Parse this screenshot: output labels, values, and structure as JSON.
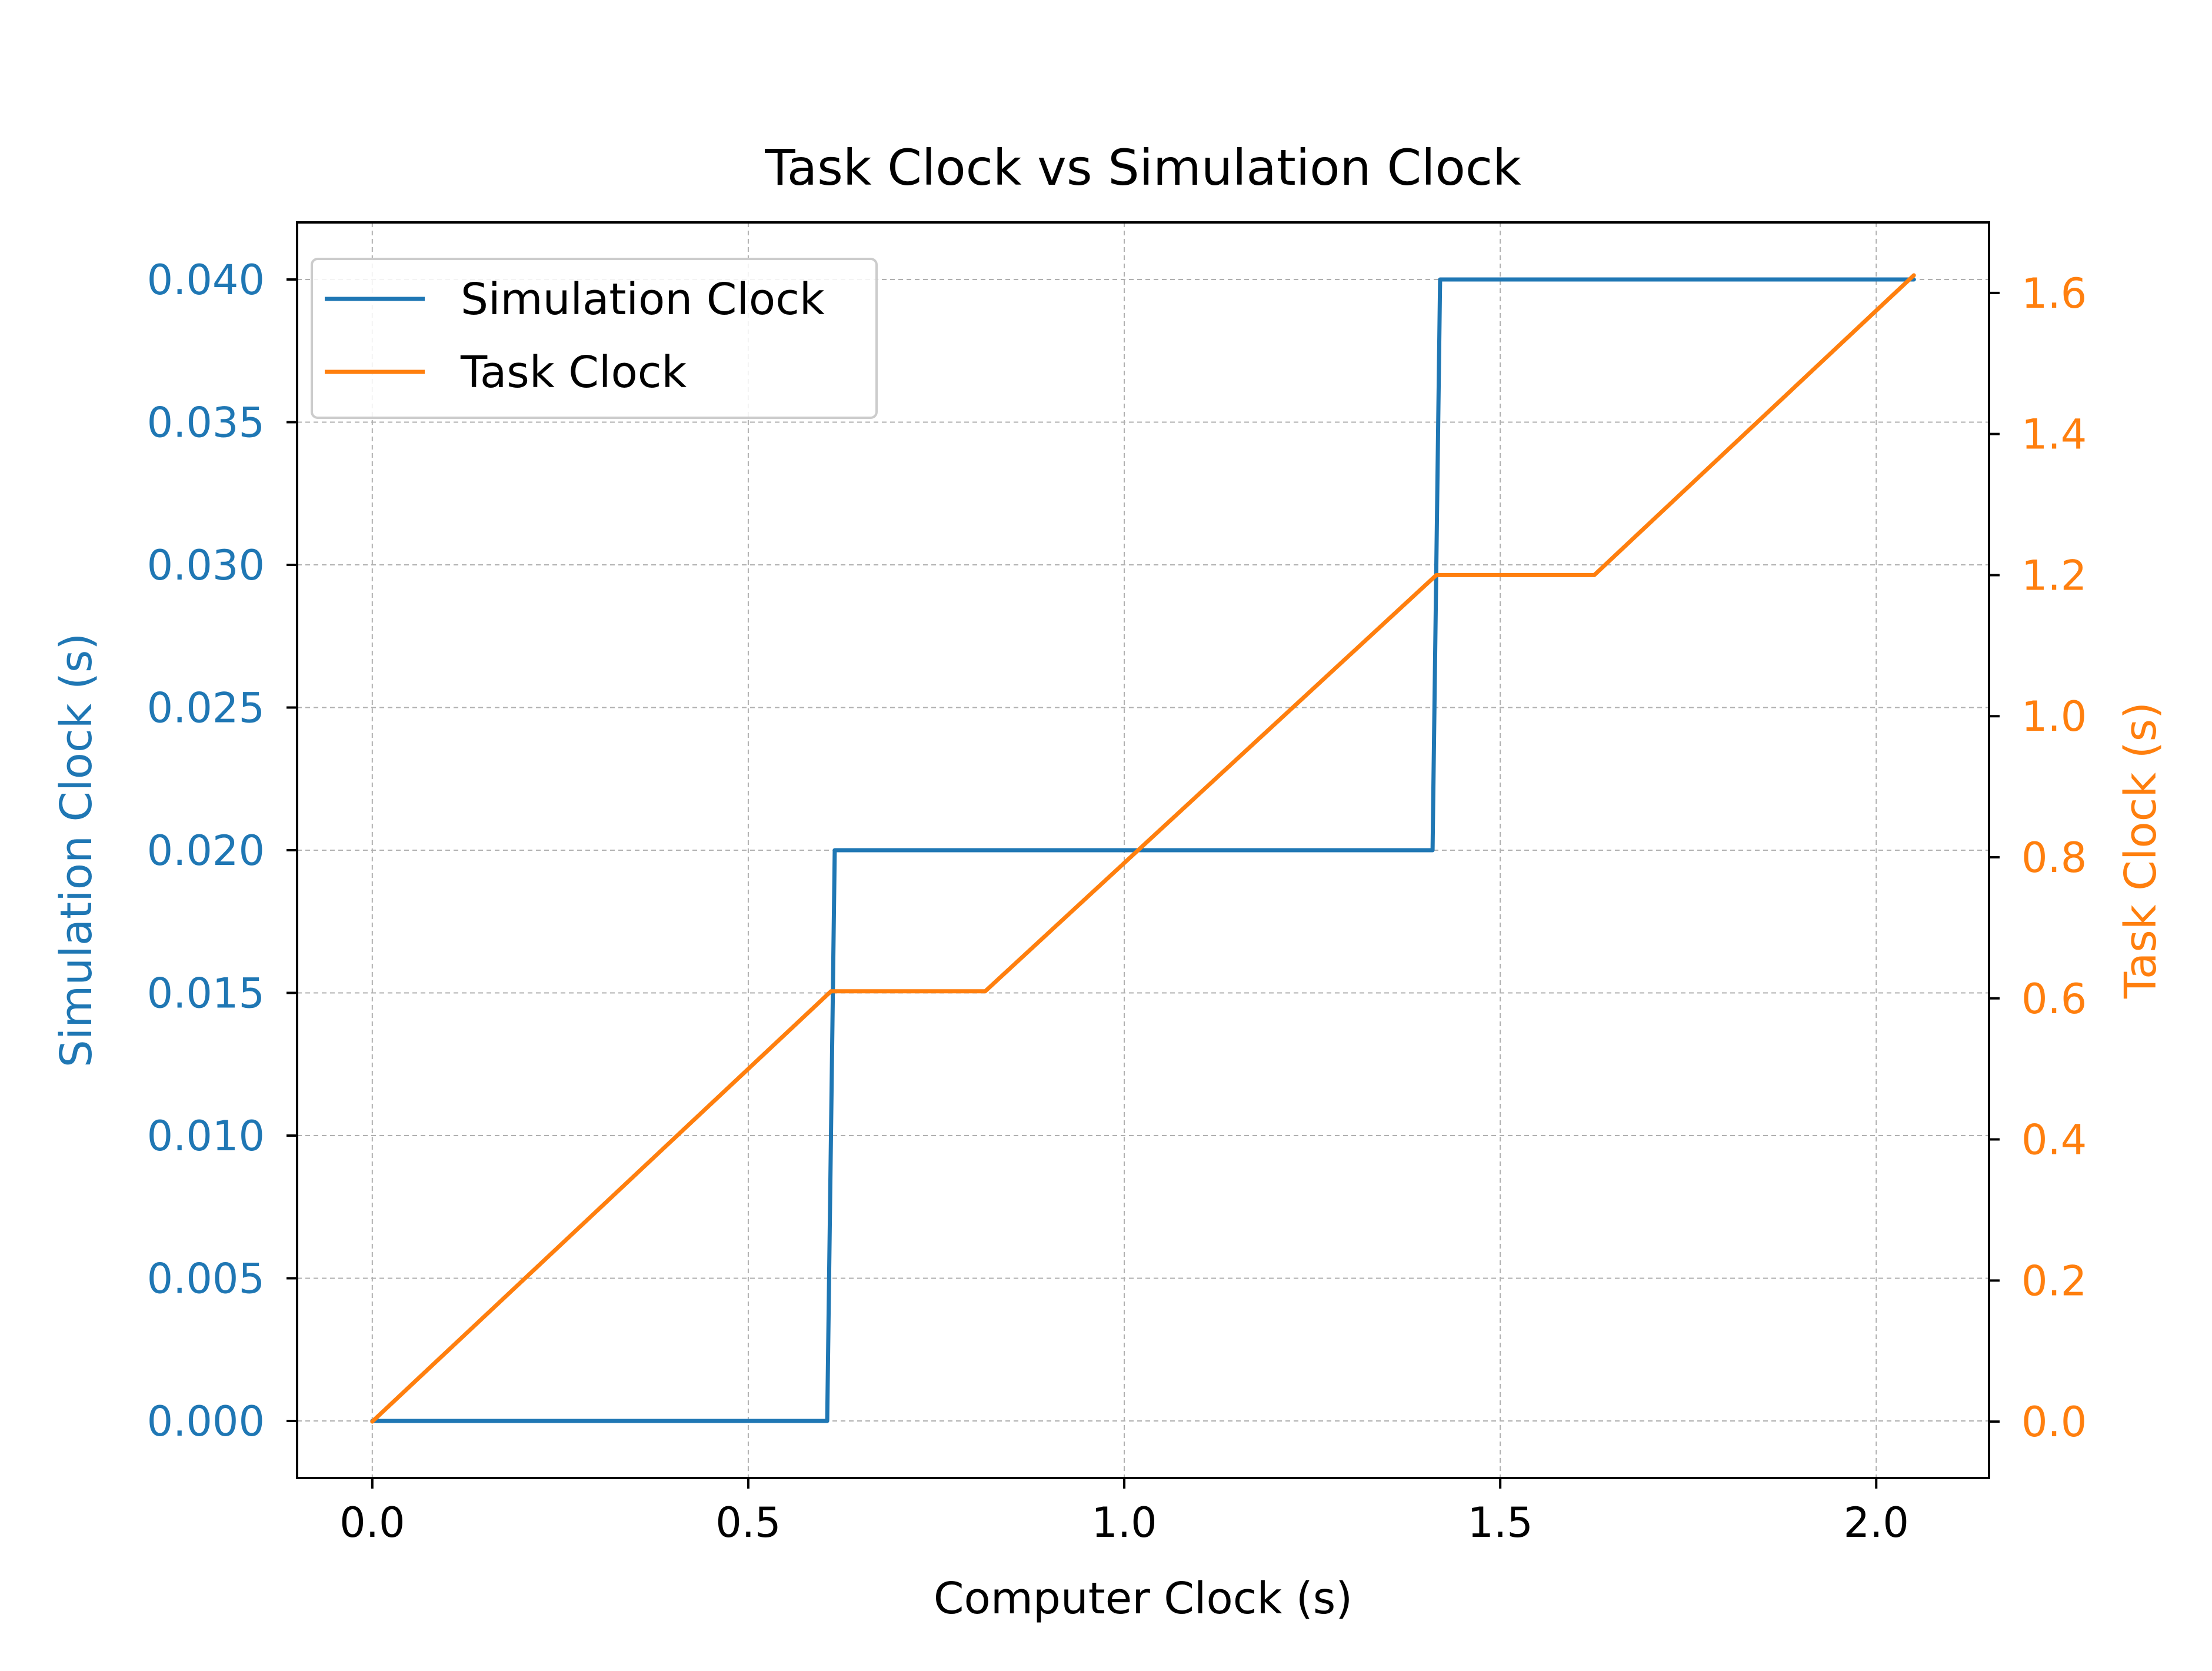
{
  "chart_data": {
    "type": "line",
    "title": "Task Clock vs Simulation Clock",
    "xlabel": "Computer Clock (s)",
    "ylabel_left": "Simulation Clock (s)",
    "ylabel_right": "Task Clock (s)",
    "xlim": [
      -0.1,
      2.15
    ],
    "ylim_left": [
      -0.002,
      0.042
    ],
    "ylim_right": [
      -0.08,
      1.7
    ],
    "x_ticks": [
      "0.0",
      "0.5",
      "1.0",
      "1.5",
      "2.0"
    ],
    "y_left_ticks": [
      "0.000",
      "0.005",
      "0.010",
      "0.015",
      "0.020",
      "0.025",
      "0.030",
      "0.035",
      "0.040"
    ],
    "y_right_ticks": [
      "0.0",
      "0.2",
      "0.4",
      "0.6",
      "0.8",
      "1.0",
      "1.2",
      "1.4",
      "1.6"
    ],
    "grid": true,
    "legend_position": "upper-left",
    "series": [
      {
        "name": "Simulation Clock",
        "axis": "left",
        "color": "#1f77b4",
        "x": [
          0.0,
          0.605,
          0.615,
          1.41,
          1.42,
          2.05
        ],
        "y": [
          0.0,
          0.0,
          0.02,
          0.02,
          0.04,
          0.04
        ]
      },
      {
        "name": "Task Clock",
        "axis": "right",
        "color": "#ff7f0e",
        "x": [
          0.0,
          0.61,
          0.815,
          1.415,
          1.625,
          2.05
        ],
        "y": [
          0.0,
          0.61,
          0.61,
          1.2,
          1.2,
          1.625
        ]
      }
    ]
  }
}
